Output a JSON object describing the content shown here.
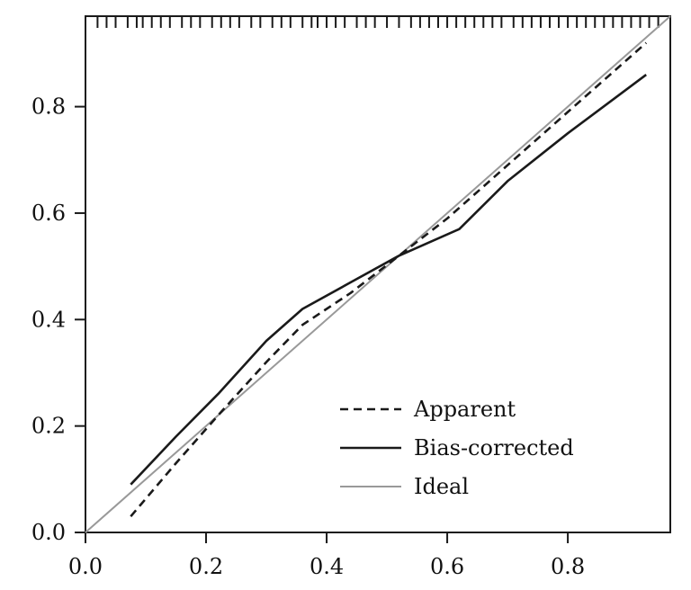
{
  "chart_data": {
    "type": "line",
    "title": "",
    "xlabel": "",
    "ylabel": "",
    "xlim": [
      0.0,
      0.97
    ],
    "ylim": [
      0.0,
      0.97
    ],
    "x_ticks": [
      "0.0",
      "0.2",
      "0.4",
      "0.6",
      "0.8"
    ],
    "y_ticks": [
      "0.0",
      "0.2",
      "0.4",
      "0.6",
      "0.8"
    ],
    "grid": false,
    "legend_position": "bottom-right",
    "series": [
      {
        "name": "Apparent",
        "style": "dashed",
        "color": "#1a1a1a",
        "x": [
          0.075,
          0.15,
          0.22,
          0.3,
          0.36,
          0.44,
          0.52,
          0.6,
          0.7,
          0.8,
          0.93
        ],
        "y": [
          0.03,
          0.13,
          0.22,
          0.32,
          0.39,
          0.45,
          0.52,
          0.59,
          0.69,
          0.79,
          0.92
        ]
      },
      {
        "name": "Bias-corrected",
        "style": "solid",
        "color": "#1a1a1a",
        "x": [
          0.075,
          0.15,
          0.22,
          0.3,
          0.36,
          0.44,
          0.52,
          0.62,
          0.7,
          0.8,
          0.93
        ],
        "y": [
          0.09,
          0.18,
          0.26,
          0.36,
          0.42,
          0.47,
          0.52,
          0.57,
          0.66,
          0.75,
          0.86
        ]
      },
      {
        "name": "Ideal",
        "style": "solid",
        "color": "#999999",
        "x": [
          0.0,
          0.97
        ],
        "y": [
          0.0,
          0.97
        ]
      }
    ],
    "rug_x": [
      0.02,
      0.035,
      0.05,
      0.07,
      0.085,
      0.095,
      0.11,
      0.125,
      0.14,
      0.16,
      0.175,
      0.19,
      0.21,
      0.225,
      0.24,
      0.255,
      0.275,
      0.29,
      0.31,
      0.325,
      0.34,
      0.36,
      0.375,
      0.385,
      0.4,
      0.415,
      0.43,
      0.45,
      0.465,
      0.48,
      0.5,
      0.52,
      0.54,
      0.555,
      0.57,
      0.585,
      0.6,
      0.615,
      0.63,
      0.645,
      0.66,
      0.675,
      0.69,
      0.71,
      0.725,
      0.74,
      0.755,
      0.77,
      0.785,
      0.8,
      0.815,
      0.83,
      0.845,
      0.86,
      0.875,
      0.89,
      0.905,
      0.92,
      0.935,
      0.95
    ]
  }
}
